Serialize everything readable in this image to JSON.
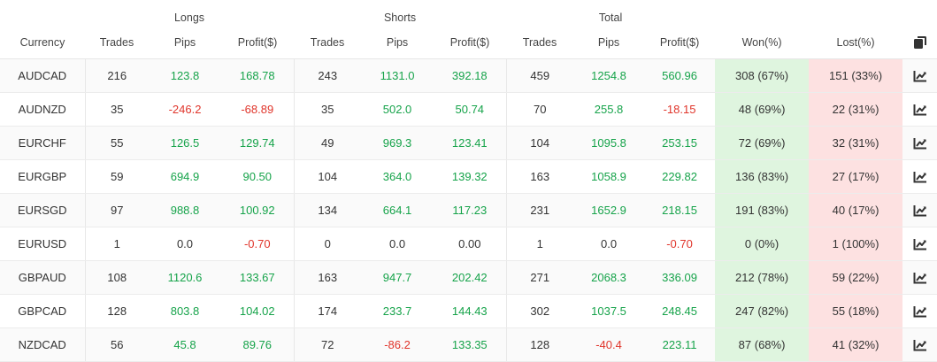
{
  "groups": {
    "longs": "Longs",
    "shorts": "Shorts",
    "total": "Total"
  },
  "columns": {
    "currency": "Currency",
    "trades": "Trades",
    "pips": "Pips",
    "profit": "Profit($)",
    "won": "Won(%)",
    "lost": "Lost(%)"
  },
  "icons": {
    "header": "copy-icon",
    "row": "chart-line-icon"
  },
  "colors": {
    "positive": "#16a34a",
    "negative": "#e0352b",
    "won_bg": "#dff5df",
    "lost_bg": "#fde1e1"
  },
  "rows": [
    {
      "currency": "AUDCAD",
      "longs": {
        "trades": "216",
        "pips": "123.8",
        "profit": "168.78"
      },
      "shorts": {
        "trades": "243",
        "pips": "1131.0",
        "profit": "392.18"
      },
      "total": {
        "trades": "459",
        "pips": "1254.8",
        "profit": "560.96"
      },
      "won": "308 (67%)",
      "lost": "151 (33%)"
    },
    {
      "currency": "AUDNZD",
      "longs": {
        "trades": "35",
        "pips": "-246.2",
        "profit": "-68.89"
      },
      "shorts": {
        "trades": "35",
        "pips": "502.0",
        "profit": "50.74"
      },
      "total": {
        "trades": "70",
        "pips": "255.8",
        "profit": "-18.15"
      },
      "won": "48 (69%)",
      "lost": "22 (31%)"
    },
    {
      "currency": "EURCHF",
      "longs": {
        "trades": "55",
        "pips": "126.5",
        "profit": "129.74"
      },
      "shorts": {
        "trades": "49",
        "pips": "969.3",
        "profit": "123.41"
      },
      "total": {
        "trades": "104",
        "pips": "1095.8",
        "profit": "253.15"
      },
      "won": "72 (69%)",
      "lost": "32 (31%)"
    },
    {
      "currency": "EURGBP",
      "longs": {
        "trades": "59",
        "pips": "694.9",
        "profit": "90.50"
      },
      "shorts": {
        "trades": "104",
        "pips": "364.0",
        "profit": "139.32"
      },
      "total": {
        "trades": "163",
        "pips": "1058.9",
        "profit": "229.82"
      },
      "won": "136 (83%)",
      "lost": "27 (17%)"
    },
    {
      "currency": "EURSGD",
      "longs": {
        "trades": "97",
        "pips": "988.8",
        "profit": "100.92"
      },
      "shorts": {
        "trades": "134",
        "pips": "664.1",
        "profit": "117.23"
      },
      "total": {
        "trades": "231",
        "pips": "1652.9",
        "profit": "218.15"
      },
      "won": "191 (83%)",
      "lost": "40 (17%)"
    },
    {
      "currency": "EURUSD",
      "longs": {
        "trades": "1",
        "pips": "0.0",
        "profit": "-0.70"
      },
      "shorts": {
        "trades": "0",
        "pips": "0.0",
        "profit": "0.00"
      },
      "total": {
        "trades": "1",
        "pips": "0.0",
        "profit": "-0.70"
      },
      "won": "0 (0%)",
      "lost": "1 (100%)"
    },
    {
      "currency": "GBPAUD",
      "longs": {
        "trades": "108",
        "pips": "1120.6",
        "profit": "133.67"
      },
      "shorts": {
        "trades": "163",
        "pips": "947.7",
        "profit": "202.42"
      },
      "total": {
        "trades": "271",
        "pips": "2068.3",
        "profit": "336.09"
      },
      "won": "212 (78%)",
      "lost": "59 (22%)"
    },
    {
      "currency": "GBPCAD",
      "longs": {
        "trades": "128",
        "pips": "803.8",
        "profit": "104.02"
      },
      "shorts": {
        "trades": "174",
        "pips": "233.7",
        "profit": "144.43"
      },
      "total": {
        "trades": "302",
        "pips": "1037.5",
        "profit": "248.45"
      },
      "won": "247 (82%)",
      "lost": "55 (18%)"
    },
    {
      "currency": "NZDCAD",
      "longs": {
        "trades": "56",
        "pips": "45.8",
        "profit": "89.76"
      },
      "shorts": {
        "trades": "72",
        "pips": "-86.2",
        "profit": "133.35"
      },
      "total": {
        "trades": "128",
        "pips": "-40.4",
        "profit": "223.11"
      },
      "won": "87 (68%)",
      "lost": "41 (32%)"
    }
  ]
}
